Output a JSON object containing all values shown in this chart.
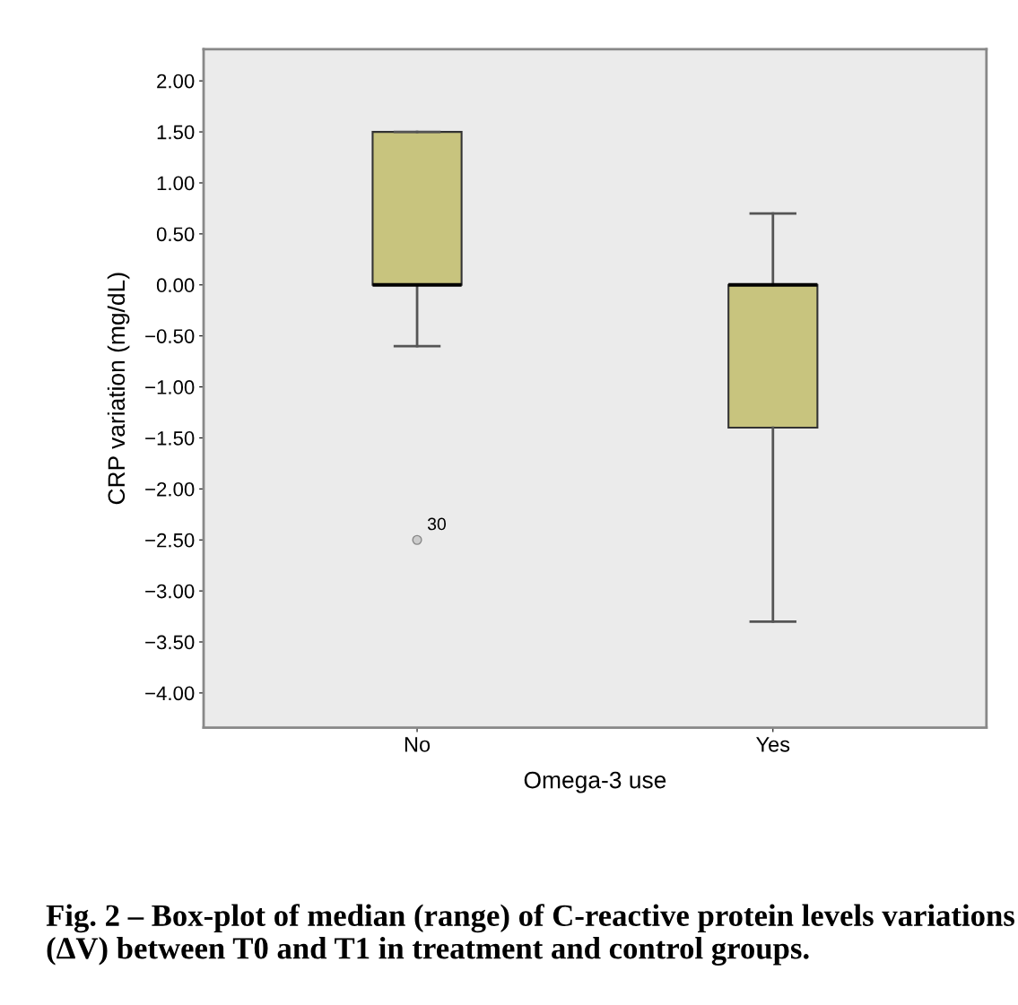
{
  "chart_data": {
    "type": "box",
    "categories": [
      "No",
      "Yes"
    ],
    "boxes": [
      {
        "low": -0.6,
        "q1": 0,
        "median": 0,
        "q3": 1.5,
        "high": 1.5,
        "outliers": [
          -2.5
        ]
      },
      {
        "low": -3.3,
        "q1": -1.4,
        "median": 0,
        "q3": 0,
        "high": 0.7
      }
    ],
    "color": "#c8c47e",
    "xlabel": "Omega-3 use",
    "ylabel": "CRP variation (mg/dL)",
    "ylim": [
      -4.34,
      2.31
    ],
    "yticks": [
      {
        "value": 2,
        "label": "2.00"
      },
      {
        "value": 1.5,
        "label": "1.50"
      },
      {
        "value": 1,
        "label": "1.00"
      },
      {
        "value": 0.5,
        "label": "0.50"
      },
      {
        "value": 0,
        "label": "0.00"
      },
      {
        "value": -0.5,
        "label": "−0.50"
      },
      {
        "value": -1,
        "label": "−1.00"
      },
      {
        "value": -1.5,
        "label": "−1.50"
      },
      {
        "value": -2,
        "label": "−2.00"
      },
      {
        "value": -2.5,
        "label": "−2.50"
      },
      {
        "value": -3,
        "label": "−3.00"
      },
      {
        "value": -3.5,
        "label": "−3.50"
      },
      {
        "value": -4,
        "label": "−4.00"
      }
    ],
    "grid": false,
    "annotations": [
      "30",
      "Fig. 2 – Box-plot of median (range) of C-reactive protein levels variations (ΔV) between T0 and T1 in treatment and control groups."
    ]
  }
}
